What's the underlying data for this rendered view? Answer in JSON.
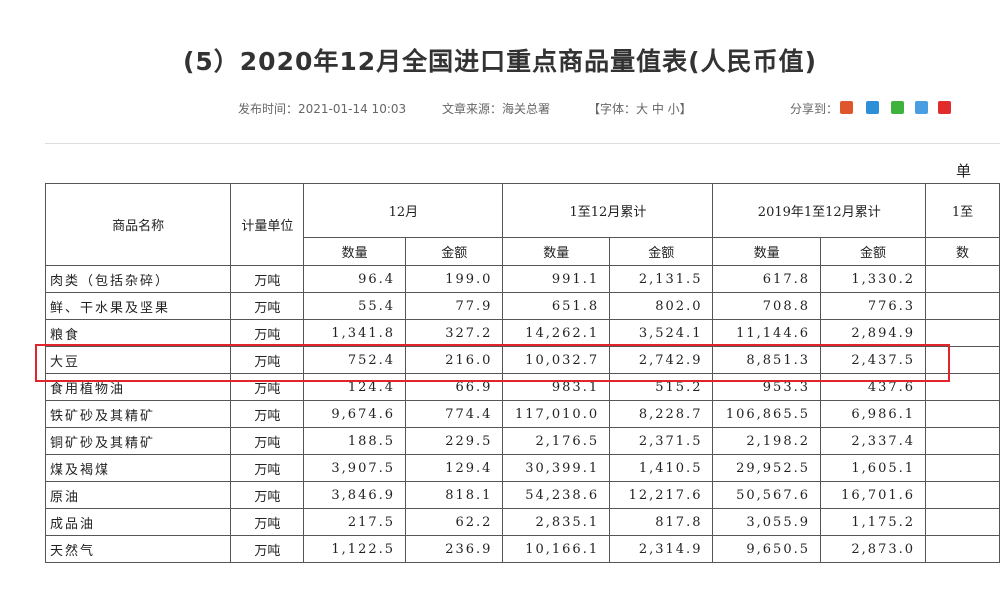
{
  "header": {
    "title": "(5）2020年12月全国进口重点商品量值表(人民币值)",
    "meta": {
      "publish_time": "发布时间：2021-01-14 10:03",
      "source": "文章来源：海关总署",
      "font_size": "【字体：大 中 小】",
      "share": "分享到："
    }
  },
  "table": {
    "unit_note": "单",
    "headers": {
      "row1": [
        "商品名称",
        "计量单位",
        "12月",
        "1至12月累计",
        "2019年1至12月累计",
        "1至"
      ],
      "row2": [
        "数量",
        "金额",
        "数量",
        "金额",
        "数量",
        "金额",
        "数"
      ]
    },
    "rows": [
      [
        "肉类（包括杂碎）",
        "万吨",
        "96.4",
        "199.0",
        "991.1",
        "2,131.5",
        "617.8",
        "1,330.2"
      ],
      [
        "鲜、干水果及坚果",
        "万吨",
        "55.4",
        "77.9",
        "651.8",
        "802.0",
        "708.8",
        "776.3"
      ],
      [
        "粮食",
        "万吨",
        "1,341.8",
        "327.2",
        "14,262.1",
        "3,524.1",
        "11,144.6",
        "2,894.9"
      ],
      [
        "大豆",
        "万吨",
        "752.4",
        "216.0",
        "10,032.7",
        "2,742.9",
        "8,851.3",
        "2,437.5"
      ],
      [
        "食用植物油",
        "万吨",
        "124.4",
        "66.9",
        "983.1",
        "515.2",
        "953.3",
        "437.6"
      ],
      [
        "铁矿砂及其精矿",
        "万吨",
        "9,674.6",
        "774.4",
        "117,010.0",
        "8,228.7",
        "106,865.5",
        "6,986.1"
      ],
      [
        "铜矿砂及其精矿",
        "万吨",
        "188.5",
        "229.5",
        "2,176.5",
        "2,371.5",
        "2,198.2",
        "2,337.4"
      ],
      [
        "煤及褐煤",
        "万吨",
        "3,907.5",
        "129.4",
        "30,399.1",
        "1,410.5",
        "29,952.5",
        "1,605.1"
      ],
      [
        "原油",
        "万吨",
        "3,846.9",
        "818.1",
        "54,238.6",
        "12,217.6",
        "50,567.6",
        "16,701.6"
      ],
      [
        "成品油",
        "万吨",
        "217.5",
        "62.2",
        "2,835.1",
        "817.8",
        "3,055.9",
        "1,175.2"
      ],
      [
        "天然气",
        "万吨",
        "1,122.5",
        "236.9",
        "10,166.1",
        "2,314.9",
        "9,650.5",
        "2,873.0"
      ]
    ]
  }
}
